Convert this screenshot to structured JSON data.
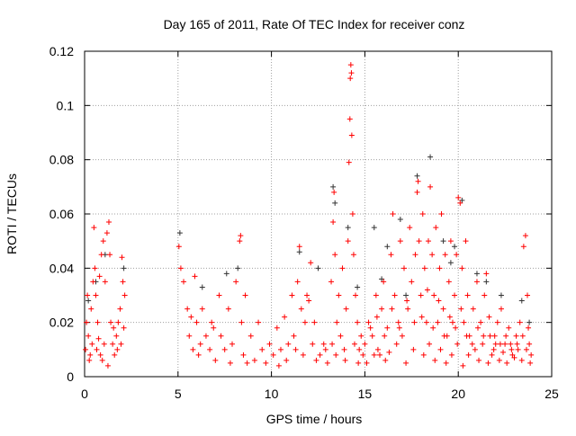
{
  "chart_data": {
    "type": "scatter",
    "title": "Day 165 of 2011, Rate Of TEC Index for receiver conz",
    "xlabel": "GPS time / hours",
    "ylabel": "ROTI / TECUs",
    "xlim": [
      0,
      25
    ],
    "ylim": [
      0,
      0.12
    ],
    "xticks": [
      "0",
      "5",
      "10",
      "15",
      "20",
      "25"
    ],
    "yticks": [
      "0",
      "0.02",
      "0.04",
      "0.06",
      "0.08",
      "0.1",
      "0.12"
    ],
    "grid": true,
    "marker": "+",
    "series": [
      {
        "name": "roti-dark",
        "color": "#333333",
        "points": [
          [
            0.2,
            0.028
          ],
          [
            0.6,
            0.035
          ],
          [
            1.1,
            0.045
          ],
          [
            2.1,
            0.04
          ],
          [
            5.1,
            0.053
          ],
          [
            6.3,
            0.033
          ],
          [
            7.6,
            0.038
          ],
          [
            8.2,
            0.04
          ],
          [
            11.5,
            0.046
          ],
          [
            12.5,
            0.04
          ],
          [
            13.3,
            0.07
          ],
          [
            13.4,
            0.064
          ],
          [
            14.1,
            0.055
          ],
          [
            14.6,
            0.033
          ],
          [
            15.5,
            0.055
          ],
          [
            16.2,
            0.048
          ],
          [
            16.9,
            0.058
          ],
          [
            17.8,
            0.074
          ],
          [
            18.5,
            0.081
          ],
          [
            19.2,
            0.05
          ],
          [
            19.8,
            0.048
          ],
          [
            20.2,
            0.065
          ],
          [
            21.5,
            0.035
          ],
          [
            22.3,
            0.03
          ],
          [
            23.4,
            0.028
          ],
          [
            23.8,
            0.02
          ],
          [
            17.2,
            0.03
          ],
          [
            19.6,
            0.042
          ],
          [
            15.9,
            0.036
          ],
          [
            21.0,
            0.038
          ]
        ]
      },
      {
        "name": "roti-red",
        "color": "#ff0000",
        "points": [
          [
            0.05,
            0.01
          ],
          [
            0.1,
            0.02
          ],
          [
            0.15,
            0.03
          ],
          [
            0.2,
            0.015
          ],
          [
            0.3,
            0.008
          ],
          [
            0.35,
            0.025
          ],
          [
            0.45,
            0.035
          ],
          [
            0.5,
            0.055
          ],
          [
            0.55,
            0.04
          ],
          [
            0.6,
            0.03
          ],
          [
            0.7,
            0.02
          ],
          [
            0.8,
            0.037
          ],
          [
            0.9,
            0.045
          ],
          [
            1.0,
            0.05
          ],
          [
            1.1,
            0.035
          ],
          [
            1.2,
            0.053
          ],
          [
            1.3,
            0.057
          ],
          [
            1.35,
            0.045
          ],
          [
            1.4,
            0.02
          ],
          [
            1.5,
            0.012
          ],
          [
            1.6,
            0.008
          ],
          [
            1.7,
            0.015
          ],
          [
            1.8,
            0.02
          ],
          [
            1.9,
            0.025
          ],
          [
            2.0,
            0.044
          ],
          [
            2.05,
            0.035
          ],
          [
            2.1,
            0.018
          ],
          [
            2.15,
            0.03
          ],
          [
            0.25,
            0.006
          ],
          [
            0.65,
            0.01
          ],
          [
            0.95,
            0.006
          ],
          [
            1.05,
            0.012
          ],
          [
            1.25,
            0.004
          ],
          [
            1.55,
            0.018
          ],
          [
            1.75,
            0.01
          ],
          [
            1.95,
            0.012
          ],
          [
            0.4,
            0.012
          ],
          [
            0.75,
            0.014
          ],
          [
            0.85,
            0.008
          ],
          [
            5.05,
            0.048
          ],
          [
            5.15,
            0.04
          ],
          [
            5.3,
            0.035
          ],
          [
            5.5,
            0.025
          ],
          [
            5.6,
            0.015
          ],
          [
            5.8,
            0.01
          ],
          [
            5.9,
            0.037
          ],
          [
            6.0,
            0.02
          ],
          [
            6.1,
            0.008
          ],
          [
            6.3,
            0.025
          ],
          [
            6.5,
            0.015
          ],
          [
            6.7,
            0.01
          ],
          [
            6.8,
            0.02
          ],
          [
            7.0,
            0.006
          ],
          [
            7.2,
            0.03
          ],
          [
            7.3,
            0.015
          ],
          [
            7.5,
            0.01
          ],
          [
            7.7,
            0.025
          ],
          [
            7.9,
            0.012
          ],
          [
            8.1,
            0.035
          ],
          [
            8.3,
            0.05
          ],
          [
            8.35,
            0.052
          ],
          [
            8.4,
            0.02
          ],
          [
            8.5,
            0.008
          ],
          [
            8.6,
            0.03
          ],
          [
            8.7,
            0.005
          ],
          [
            8.9,
            0.015
          ],
          [
            9.1,
            0.006
          ],
          [
            9.3,
            0.02
          ],
          [
            9.5,
            0.01
          ],
          [
            9.7,
            0.005
          ],
          [
            9.9,
            0.012
          ],
          [
            6.2,
            0.012
          ],
          [
            6.9,
            0.018
          ],
          [
            7.8,
            0.005
          ],
          [
            5.7,
            0.022
          ],
          [
            10.1,
            0.008
          ],
          [
            10.3,
            0.018
          ],
          [
            10.5,
            0.01
          ],
          [
            10.7,
            0.022
          ],
          [
            10.9,
            0.012
          ],
          [
            11.1,
            0.03
          ],
          [
            11.2,
            0.015
          ],
          [
            11.4,
            0.035
          ],
          [
            11.5,
            0.048
          ],
          [
            11.6,
            0.025
          ],
          [
            11.8,
            0.02
          ],
          [
            11.9,
            0.03
          ],
          [
            12.0,
            0.028
          ],
          [
            12.1,
            0.042
          ],
          [
            12.2,
            0.012
          ],
          [
            12.4,
            0.006
          ],
          [
            12.6,
            0.008
          ],
          [
            12.8,
            0.012
          ],
          [
            13.0,
            0.005
          ],
          [
            10.4,
            0.004
          ],
          [
            10.8,
            0.006
          ],
          [
            11.3,
            0.01
          ],
          [
            11.7,
            0.008
          ],
          [
            12.3,
            0.02
          ],
          [
            12.9,
            0.01
          ],
          [
            13.2,
            0.035
          ],
          [
            13.3,
            0.057
          ],
          [
            13.35,
            0.068
          ],
          [
            13.4,
            0.045
          ],
          [
            13.5,
            0.02
          ],
          [
            13.6,
            0.03
          ],
          [
            13.7,
            0.015
          ],
          [
            13.8,
            0.04
          ],
          [
            13.9,
            0.01
          ],
          [
            14.0,
            0.025
          ],
          [
            14.1,
            0.05
          ],
          [
            14.15,
            0.079
          ],
          [
            14.2,
            0.095
          ],
          [
            14.22,
            0.11
          ],
          [
            14.25,
            0.115
          ],
          [
            14.28,
            0.112
          ],
          [
            14.3,
            0.089
          ],
          [
            14.35,
            0.06
          ],
          [
            14.4,
            0.045
          ],
          [
            14.5,
            0.03
          ],
          [
            14.6,
            0.02
          ],
          [
            14.7,
            0.01
          ],
          [
            14.8,
            0.015
          ],
          [
            14.9,
            0.008
          ],
          [
            13.25,
            0.012
          ],
          [
            13.45,
            0.008
          ],
          [
            13.95,
            0.006
          ],
          [
            14.45,
            0.012
          ],
          [
            14.65,
            0.005
          ],
          [
            15.0,
            0.012
          ],
          [
            15.2,
            0.02
          ],
          [
            15.4,
            0.015
          ],
          [
            15.6,
            0.03
          ],
          [
            15.8,
            0.008
          ],
          [
            15.9,
            0.025
          ],
          [
            16.0,
            0.035
          ],
          [
            16.2,
            0.018
          ],
          [
            16.4,
            0.045
          ],
          [
            16.5,
            0.06
          ],
          [
            16.6,
            0.03
          ],
          [
            16.8,
            0.02
          ],
          [
            16.9,
            0.05
          ],
          [
            17.0,
            0.015
          ],
          [
            17.1,
            0.04
          ],
          [
            17.3,
            0.025
          ],
          [
            17.4,
            0.055
          ],
          [
            17.5,
            0.035
          ],
          [
            17.7,
            0.045
          ],
          [
            17.8,
            0.068
          ],
          [
            17.85,
            0.072
          ],
          [
            17.9,
            0.05
          ],
          [
            18.0,
            0.03
          ],
          [
            18.1,
            0.06
          ],
          [
            18.2,
            0.04
          ],
          [
            18.3,
            0.02
          ],
          [
            18.4,
            0.05
          ],
          [
            18.5,
            0.07
          ],
          [
            18.6,
            0.045
          ],
          [
            18.7,
            0.03
          ],
          [
            18.8,
            0.055
          ],
          [
            18.9,
            0.02
          ],
          [
            19.0,
            0.04
          ],
          [
            19.1,
            0.06
          ],
          [
            19.2,
            0.025
          ],
          [
            19.3,
            0.045
          ],
          [
            19.4,
            0.015
          ],
          [
            19.5,
            0.035
          ],
          [
            19.6,
            0.05
          ],
          [
            19.7,
            0.02
          ],
          [
            19.8,
            0.03
          ],
          [
            19.9,
            0.045
          ],
          [
            20.0,
            0.066
          ],
          [
            20.1,
            0.064
          ],
          [
            20.2,
            0.04
          ],
          [
            20.3,
            0.02
          ],
          [
            20.4,
            0.05
          ],
          [
            20.5,
            0.03
          ],
          [
            20.6,
            0.015
          ],
          [
            20.8,
            0.025
          ],
          [
            21.0,
            0.035
          ],
          [
            21.2,
            0.02
          ],
          [
            21.4,
            0.03
          ],
          [
            21.5,
            0.038
          ],
          [
            21.7,
            0.015
          ],
          [
            21.9,
            0.01
          ],
          [
            22.1,
            0.02
          ],
          [
            22.3,
            0.025
          ],
          [
            22.5,
            0.012
          ],
          [
            22.7,
            0.018
          ],
          [
            22.9,
            0.008
          ],
          [
            23.1,
            0.015
          ],
          [
            23.3,
            0.02
          ],
          [
            23.5,
            0.048
          ],
          [
            23.6,
            0.052
          ],
          [
            23.7,
            0.03
          ],
          [
            23.8,
            0.012
          ],
          [
            23.9,
            0.008
          ],
          [
            15.1,
            0.005
          ],
          [
            15.5,
            0.008
          ],
          [
            15.7,
            0.01
          ],
          [
            16.1,
            0.006
          ],
          [
            16.3,
            0.009
          ],
          [
            16.7,
            0.012
          ],
          [
            17.2,
            0.005
          ],
          [
            17.6,
            0.01
          ],
          [
            18.15,
            0.008
          ],
          [
            18.45,
            0.012
          ],
          [
            18.75,
            0.006
          ],
          [
            19.05,
            0.01
          ],
          [
            19.35,
            0.005
          ],
          [
            19.65,
            0.008
          ],
          [
            19.95,
            0.012
          ],
          [
            20.25,
            0.004
          ],
          [
            20.55,
            0.008
          ],
          [
            20.9,
            0.01
          ],
          [
            21.1,
            0.006
          ],
          [
            21.3,
            0.012
          ],
          [
            21.6,
            0.005
          ],
          [
            21.8,
            0.008
          ],
          [
            22.0,
            0.012
          ],
          [
            22.2,
            0.006
          ],
          [
            22.4,
            0.009
          ],
          [
            22.6,
            0.005
          ],
          [
            22.8,
            0.012
          ],
          [
            23.0,
            0.007
          ],
          [
            23.2,
            0.01
          ],
          [
            23.4,
            0.006
          ],
          [
            23.65,
            0.01
          ],
          [
            23.85,
            0.005
          ],
          [
            15.3,
            0.018
          ],
          [
            15.65,
            0.022
          ],
          [
            16.05,
            0.015
          ],
          [
            16.45,
            0.025
          ],
          [
            16.85,
            0.018
          ],
          [
            17.25,
            0.028
          ],
          [
            17.65,
            0.02
          ],
          [
            18.05,
            0.022
          ],
          [
            18.35,
            0.032
          ],
          [
            18.65,
            0.018
          ],
          [
            18.95,
            0.028
          ],
          [
            19.25,
            0.015
          ],
          [
            19.55,
            0.022
          ],
          [
            19.85,
            0.018
          ],
          [
            20.15,
            0.025
          ],
          [
            20.45,
            0.015
          ],
          [
            20.75,
            0.012
          ],
          [
            21.05,
            0.018
          ],
          [
            21.35,
            0.015
          ],
          [
            21.65,
            0.022
          ],
          [
            21.95,
            0.015
          ],
          [
            22.25,
            0.012
          ],
          [
            22.55,
            0.015
          ],
          [
            22.85,
            0.01
          ],
          [
            23.15,
            0.012
          ],
          [
            23.45,
            0.015
          ],
          [
            23.75,
            0.018
          ]
        ]
      }
    ]
  }
}
